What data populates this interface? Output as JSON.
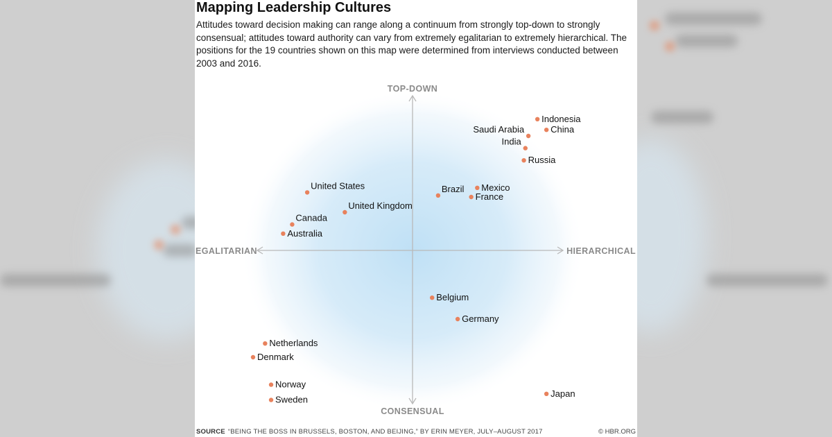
{
  "title": "Mapping Leadership Cultures",
  "description": "Attitudes toward decision making can range along a continuum from strongly top-down to strongly consensual; attitudes toward authority can vary from extremely egalitarian to extremely hierarchical. The positions for the 19 countries shown on this map were determined from interviews conducted between 2003 and 2016.",
  "source_label": "SOURCE",
  "source_text": "“BEING THE BOSS IN BRUSSELS, BOSTON, AND BEIJING,” BY ERIN MEYER, JULY–AUGUST 2017",
  "credit": "© HBR.ORG",
  "colors": {
    "point": "#e8825d",
    "axis": "#b9b9b9",
    "axis_label": "#8a8a8a",
    "glow": "#bfe0f5"
  },
  "chart_data": {
    "type": "scatter",
    "xlabel_left": "EGALITARIAN",
    "xlabel_right": "HIERARCHICAL",
    "ylabel_top": "TOP-DOWN",
    "ylabel_bottom": "CONSENSUAL",
    "xlim": [
      -1,
      1
    ],
    "ylim": [
      -1,
      1
    ],
    "points": [
      {
        "name": "Indonesia",
        "x": 0.83,
        "y": 0.86,
        "label": "right"
      },
      {
        "name": "China",
        "x": 0.89,
        "y": 0.79,
        "label": "right"
      },
      {
        "name": "Saudi Arabia",
        "x": 0.77,
        "y": 0.75,
        "label": "upleft"
      },
      {
        "name": "India",
        "x": 0.75,
        "y": 0.67,
        "label": "upleft"
      },
      {
        "name": "Russia",
        "x": 0.74,
        "y": 0.59,
        "label": "right"
      },
      {
        "name": "Mexico",
        "x": 0.43,
        "y": 0.41,
        "label": "right"
      },
      {
        "name": "Brazil",
        "x": 0.17,
        "y": 0.36,
        "label": "upright"
      },
      {
        "name": "France",
        "x": 0.39,
        "y": 0.35,
        "label": "right"
      },
      {
        "name": "United States",
        "x": -0.7,
        "y": 0.38,
        "label": "upright"
      },
      {
        "name": "United Kingdom",
        "x": -0.45,
        "y": 0.25,
        "label": "upright"
      },
      {
        "name": "Canada",
        "x": -0.8,
        "y": 0.17,
        "label": "upright"
      },
      {
        "name": "Australia",
        "x": -0.86,
        "y": 0.11,
        "label": "right"
      },
      {
        "name": "Belgium",
        "x": 0.13,
        "y": -0.31,
        "label": "right"
      },
      {
        "name": "Germany",
        "x": 0.3,
        "y": -0.45,
        "label": "right"
      },
      {
        "name": "Netherlands",
        "x": -0.98,
        "y": -0.61,
        "label": "right"
      },
      {
        "name": "Denmark",
        "x": -1.06,
        "y": -0.7,
        "label": "right"
      },
      {
        "name": "Norway",
        "x": -0.94,
        "y": -0.88,
        "label": "right"
      },
      {
        "name": "Sweden",
        "x": -0.94,
        "y": -0.98,
        "label": "right"
      },
      {
        "name": "Japan",
        "x": 0.89,
        "y": -0.94,
        "label": "right"
      }
    ]
  }
}
